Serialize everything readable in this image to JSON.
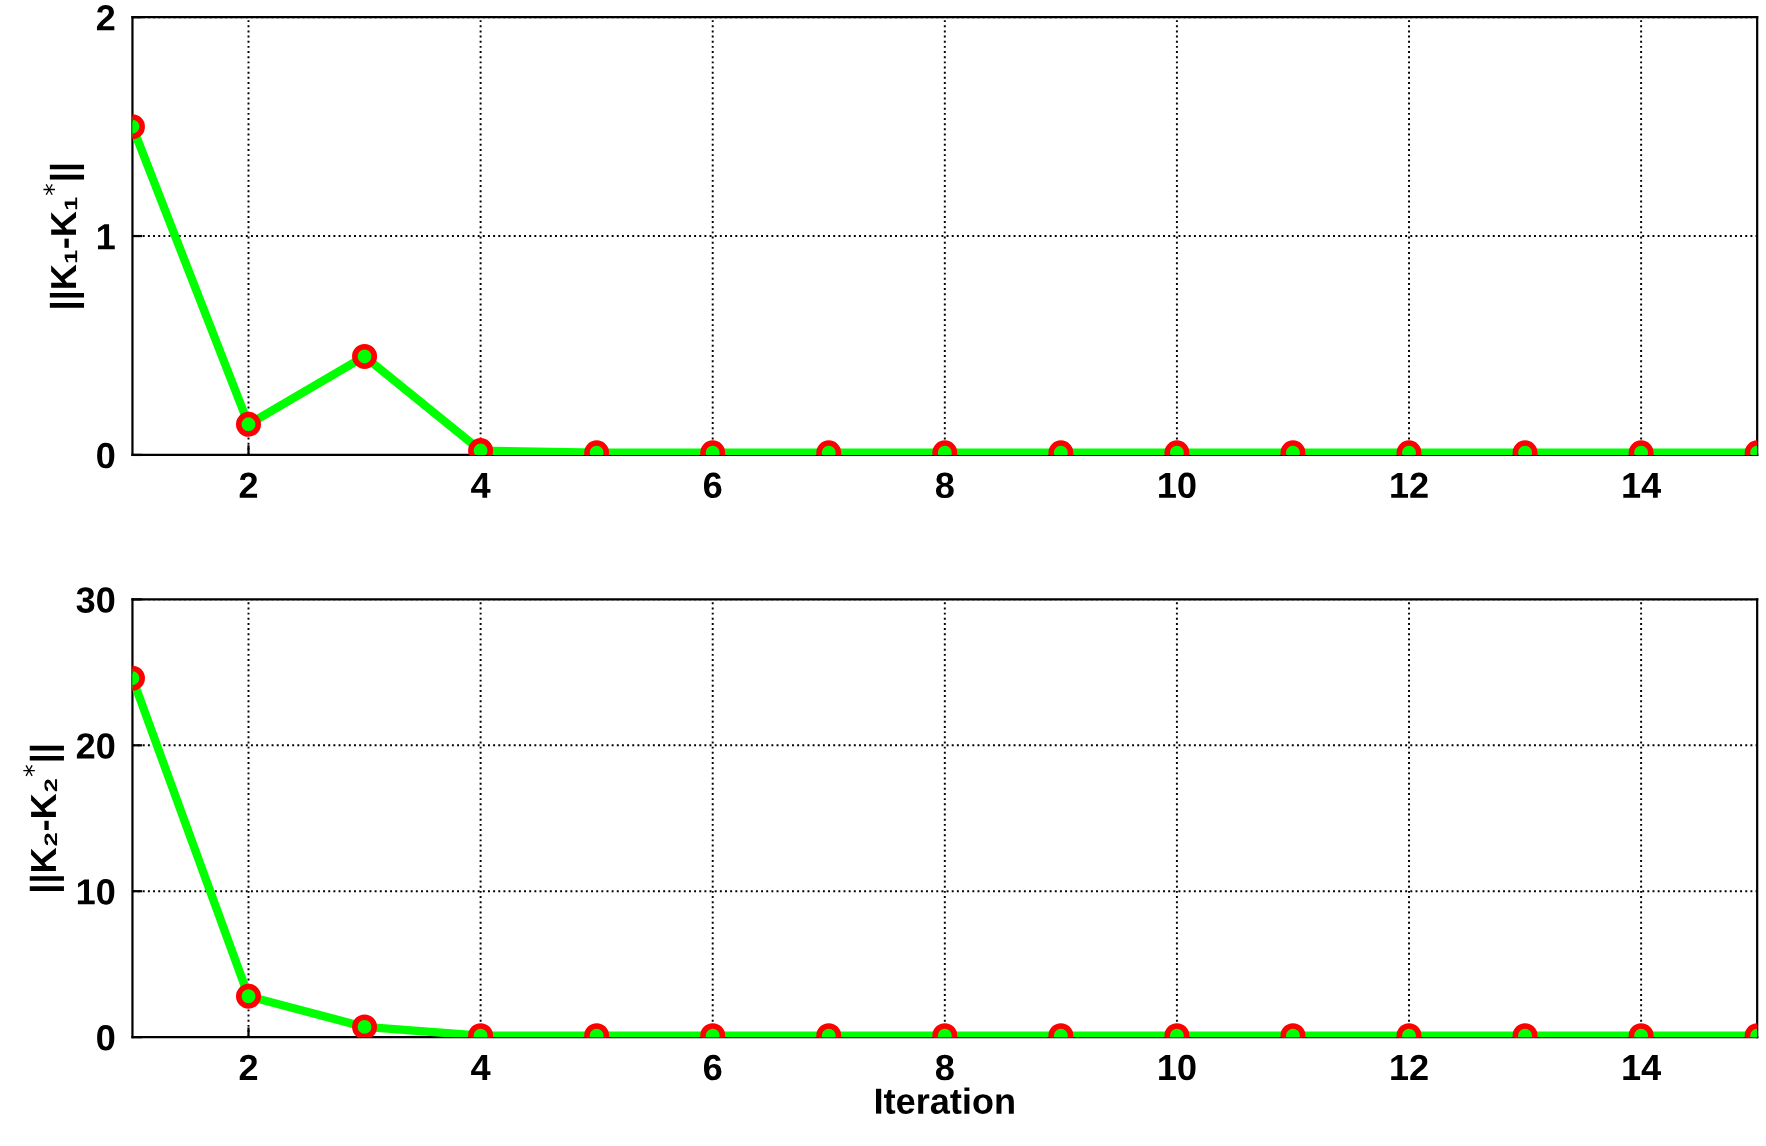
{
  "chart_data": [
    {
      "type": "line",
      "ylabel": "||K₁-K₁$^{*}$||",
      "x": [
        1,
        2,
        3,
        4,
        5,
        6,
        7,
        8,
        9,
        10,
        11,
        12,
        13,
        14,
        15
      ],
      "xlim": [
        1,
        15
      ],
      "xticks": [
        2,
        4,
        6,
        8,
        10,
        12,
        14
      ],
      "ylim": [
        0,
        2
      ],
      "yticks": [
        0,
        1,
        2
      ],
      "grid": true,
      "marker": "circle",
      "line_style": "solid",
      "series": [
        {
          "color": "#00ff00",
          "values": [
            1.5,
            0.14,
            0.45,
            0.02,
            0.01,
            0.01,
            0.01,
            0.01,
            0.01,
            0.01,
            0.01,
            0.01,
            0.01,
            0.01,
            0.01
          ]
        }
      ]
    },
    {
      "type": "line",
      "xlabel": "Iteration",
      "ylabel": "||K₂-K₂$^{*}$||",
      "x": [
        1,
        2,
        3,
        4,
        5,
        6,
        7,
        8,
        9,
        10,
        11,
        12,
        13,
        14,
        15
      ],
      "xlim": [
        1,
        15
      ],
      "xticks": [
        2,
        4,
        6,
        8,
        10,
        12,
        14
      ],
      "ylim": [
        0,
        30
      ],
      "yticks": [
        0,
        10,
        20,
        30
      ],
      "grid": true,
      "marker": "circle",
      "line_style": "solid",
      "series": [
        {
          "color": "#00ff00",
          "values": [
            24.6,
            2.8,
            0.7,
            0.1,
            0.1,
            0.1,
            0.1,
            0.1,
            0.1,
            0.1,
            0.1,
            0.1,
            0.1,
            0.1,
            0.1
          ]
        }
      ]
    }
  ]
}
